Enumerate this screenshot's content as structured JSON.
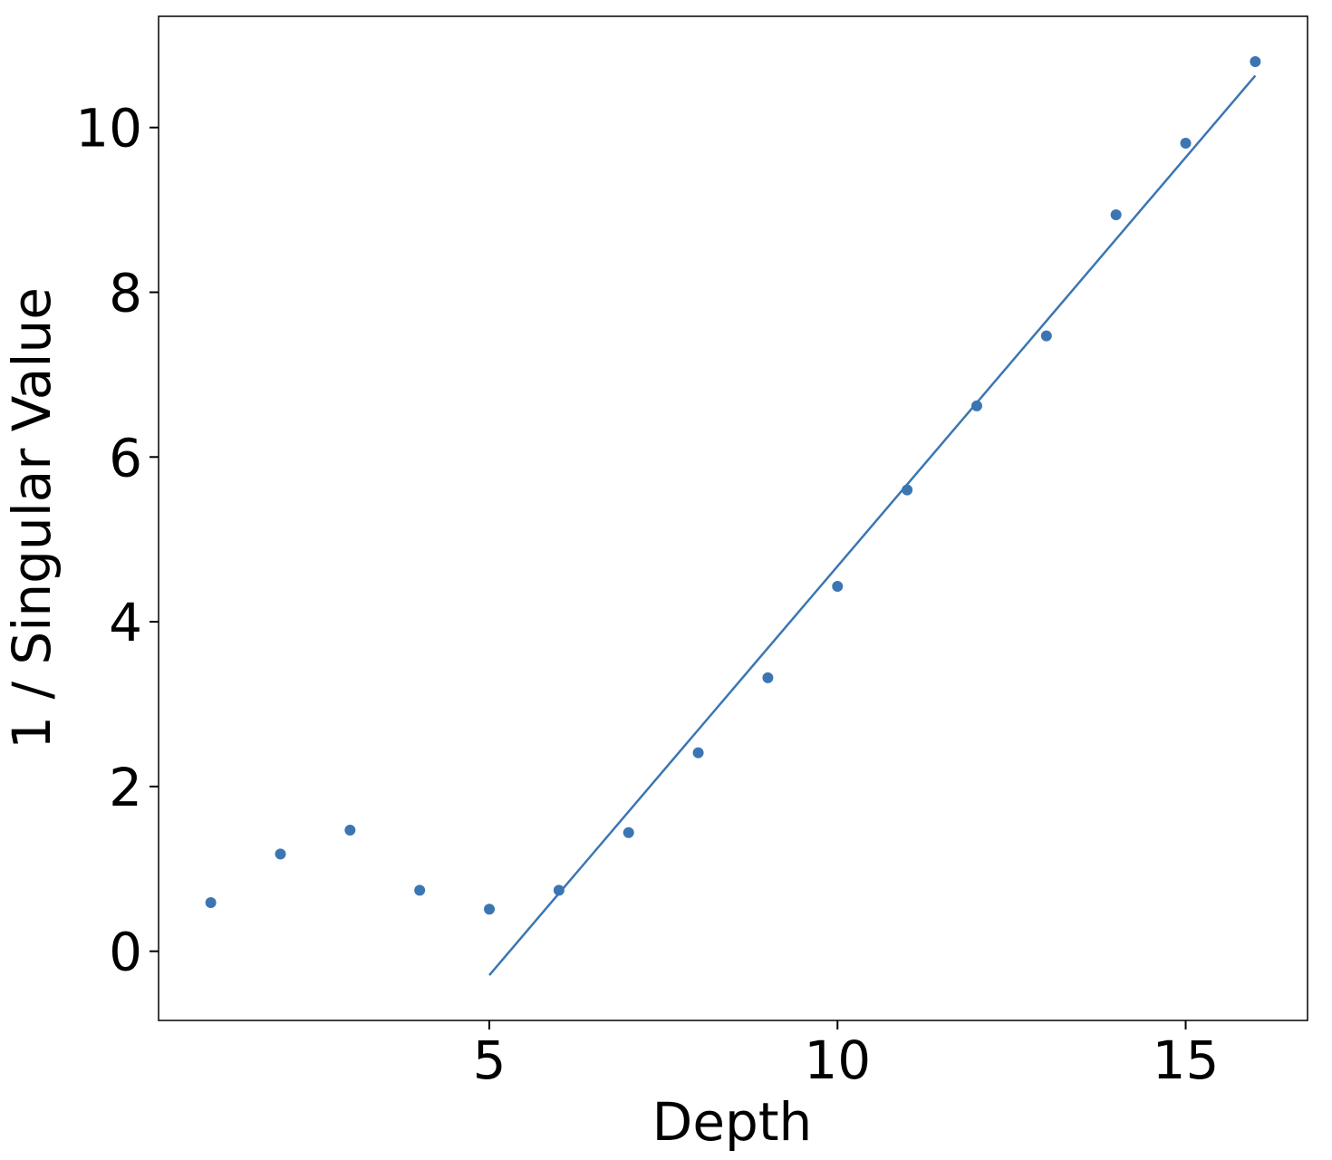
{
  "chart_data": {
    "type": "scatter",
    "xlabel": "Depth",
    "ylabel": "1 / Singular Value",
    "x": [
      1,
      2,
      3,
      4,
      5,
      6,
      7,
      8,
      9,
      10,
      11,
      12,
      13,
      14,
      15,
      16
    ],
    "values": [
      0.59,
      1.18,
      1.47,
      0.74,
      0.51,
      0.74,
      1.44,
      2.41,
      3.32,
      4.43,
      5.6,
      6.62,
      7.47,
      8.94,
      9.81,
      10.8
    ],
    "color": "#3b76b3",
    "fit": {
      "x": [
        5,
        16
      ],
      "values": [
        -0.29,
        10.63
      ],
      "color": "#3b76b3"
    },
    "xlim": [
      0.25,
      16.75
    ],
    "ylim": [
      -0.84,
      11.35
    ],
    "xticks": [
      5,
      10,
      15
    ],
    "yticks": [
      0,
      2,
      4,
      6,
      8,
      10
    ]
  }
}
